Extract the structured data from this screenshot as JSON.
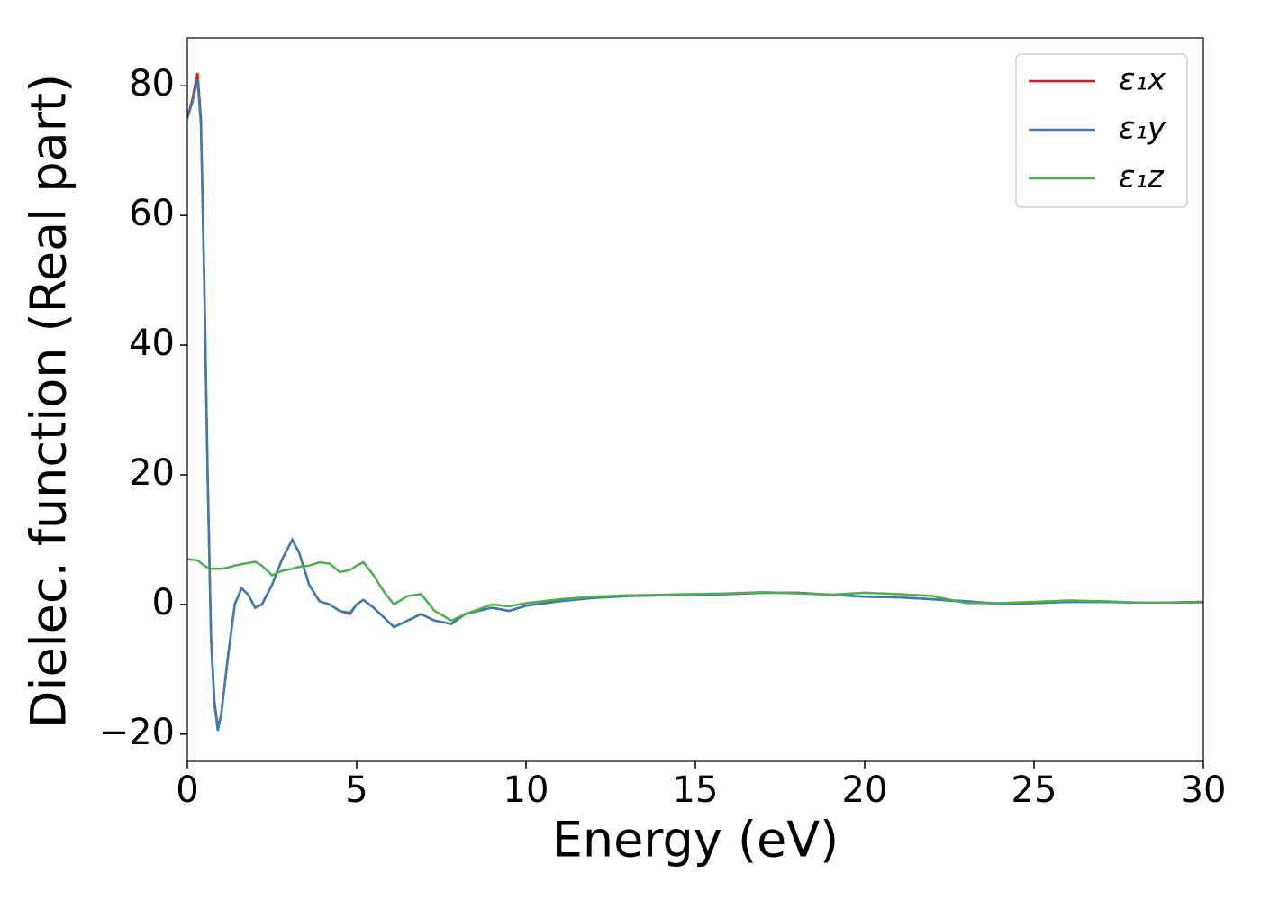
{
  "chart_data": {
    "type": "line",
    "x_label": "Energy (eV)",
    "y_label": "Dielec. function (Real part)",
    "x": [
      0,
      0.15,
      0.3,
      0.4,
      0.5,
      0.6,
      0.7,
      0.8,
      0.9,
      1.0,
      1.2,
      1.4,
      1.6,
      1.8,
      2.0,
      2.2,
      2.5,
      2.8,
      3.1,
      3.3,
      3.6,
      3.9,
      4.2,
      4.5,
      4.8,
      5.0,
      5.2,
      5.5,
      5.8,
      6.1,
      6.5,
      6.9,
      7.3,
      7.8,
      8.2,
      9.0,
      9.5,
      10,
      11,
      12,
      13,
      14,
      15,
      16,
      17,
      18,
      19,
      20,
      21,
      22,
      23,
      24,
      25,
      26,
      27,
      28,
      29,
      30
    ],
    "series": [
      {
        "name": "ε₁x",
        "color": "#e41a1c",
        "values": [
          75,
          78,
          82,
          75,
          50,
          20,
          -5,
          -15,
          -19,
          -17,
          -8,
          0,
          2.5,
          1.5,
          -0.5,
          0,
          3,
          7,
          10,
          8,
          3,
          0.5,
          0,
          -1,
          -1.5,
          0,
          0.7,
          -0.5,
          -2,
          -3.5,
          -2.5,
          -1.5,
          -2.5,
          -3,
          -1.5,
          -0.5,
          -1,
          -0.2,
          0.5,
          1,
          1.3,
          1.4,
          1.5,
          1.6,
          1.8,
          1.8,
          1.5,
          1.2,
          1.1,
          0.8,
          0.4,
          0.1,
          0.2,
          0.4,
          0.4,
          0.3,
          0.3,
          0.4
        ]
      },
      {
        "name": "ε₁y",
        "color": "#377eb8",
        "values": [
          75,
          77.5,
          81,
          74,
          49,
          19,
          -5.5,
          -15.5,
          -19.5,
          -17,
          -8,
          0,
          2.5,
          1.5,
          -0.5,
          0,
          3,
          7,
          10,
          8,
          3,
          0.5,
          0,
          -1,
          -1.3,
          0,
          0.7,
          -0.5,
          -2,
          -3.5,
          -2.5,
          -1.5,
          -2.5,
          -3,
          -1.5,
          -0.5,
          -1,
          -0.2,
          0.5,
          1,
          1.3,
          1.4,
          1.5,
          1.6,
          1.8,
          1.8,
          1.5,
          1.2,
          1.1,
          0.8,
          0.5,
          0.1,
          0.2,
          0.4,
          0.4,
          0.3,
          0.3,
          0.4
        ]
      },
      {
        "name": "ε₁z",
        "color": "#4daf4a",
        "values": [
          7,
          6.9,
          6.8,
          6.4,
          6,
          5.7,
          5.5,
          5.5,
          5.5,
          5.5,
          5.7,
          6,
          6.2,
          6.4,
          6.6,
          6,
          4.5,
          5.2,
          5.5,
          5.8,
          6,
          6.5,
          6.3,
          5,
          5.3,
          6,
          6.5,
          4.5,
          2,
          0,
          1.3,
          1.6,
          -1,
          -2.5,
          -1.5,
          0,
          -0.3,
          0.2,
          0.8,
          1.2,
          1.4,
          1.5,
          1.6,
          1.7,
          1.9,
          1.7,
          1.5,
          1.8,
          1.6,
          1.3,
          0.2,
          0.2,
          0.4,
          0.6,
          0.5,
          0.3,
          0.3,
          0.3
        ]
      }
    ],
    "xlim": [
      0,
      30
    ],
    "xticks": [
      0,
      5,
      10,
      15,
      20,
      25,
      30
    ],
    "ylim": [
      -24.2,
      87.4
    ],
    "yticks": [
      {
        "value": -20,
        "label": "−20"
      },
      0,
      20,
      40,
      60,
      80
    ],
    "grid": false,
    "legend": "upper right"
  }
}
